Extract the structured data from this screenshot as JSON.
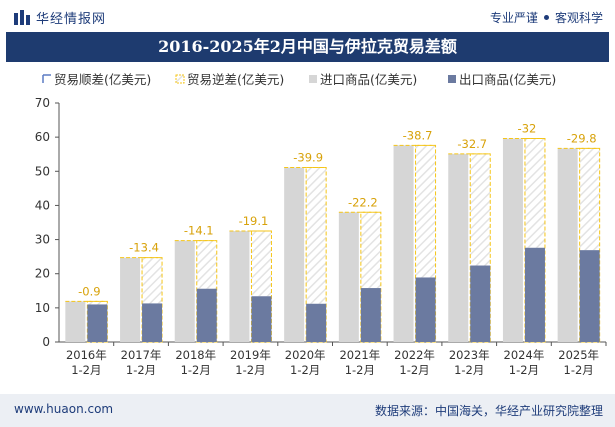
{
  "header": {
    "brand_name": "华经情报网",
    "tagline_left": "专业严谨",
    "tagline_right": "客观科学"
  },
  "colors": {
    "title_bg": "#1e3b6f",
    "import": "#d6d6d6",
    "export": "#6b7aa0",
    "deficit": "#f5c518",
    "surplus": "#5b7cc4"
  },
  "chart_data": {
    "type": "bar",
    "title": "2016-2025年2月中国与伊拉克贸易差额",
    "categories": [
      "2016年\n1-2月",
      "2017年\n1-2月",
      "2018年\n1-2月",
      "2019年\n1-2月",
      "2020年\n1-2月",
      "2021年\n1-2月",
      "2022年\n1-2月",
      "2023年\n1-2月",
      "2024年\n1-2月",
      "2025年\n1-2月"
    ],
    "ylim": [
      0,
      70
    ],
    "yticks": [
      0,
      10,
      20,
      30,
      40,
      50,
      60,
      70
    ],
    "grid": false,
    "legend_position": "top",
    "legend": [
      "贸易顺差(亿美元)",
      "贸易逆差(亿美元)",
      "进口商品(亿美元)",
      "出口商品(亿美元)"
    ],
    "series": [
      {
        "name": "进口商品(亿美元)",
        "values": [
          11.9,
          24.7,
          29.7,
          32.5,
          51.1,
          38.0,
          57.6,
          55.1,
          59.6,
          56.7
        ]
      },
      {
        "name": "出口商品(亿美元)",
        "values": [
          11.0,
          11.3,
          15.6,
          13.4,
          11.2,
          15.8,
          18.9,
          22.4,
          27.6,
          26.9
        ]
      },
      {
        "name": "贸易逆差(亿美元)",
        "values": [
          -0.9,
          -13.4,
          -14.1,
          -19.1,
          -39.9,
          -22.2,
          -38.7,
          -32.7,
          -32,
          -29.8
        ]
      }
    ],
    "data_labels": [
      "-0.9",
      "-13.4",
      "-14.1",
      "-19.1",
      "-39.9",
      "-22.2",
      "-38.7",
      "-32.7",
      "-32",
      "-29.8"
    ]
  },
  "footer": {
    "website": "www.huaon.com",
    "source": "数据来源：中国海关，华经产业研究院整理"
  }
}
